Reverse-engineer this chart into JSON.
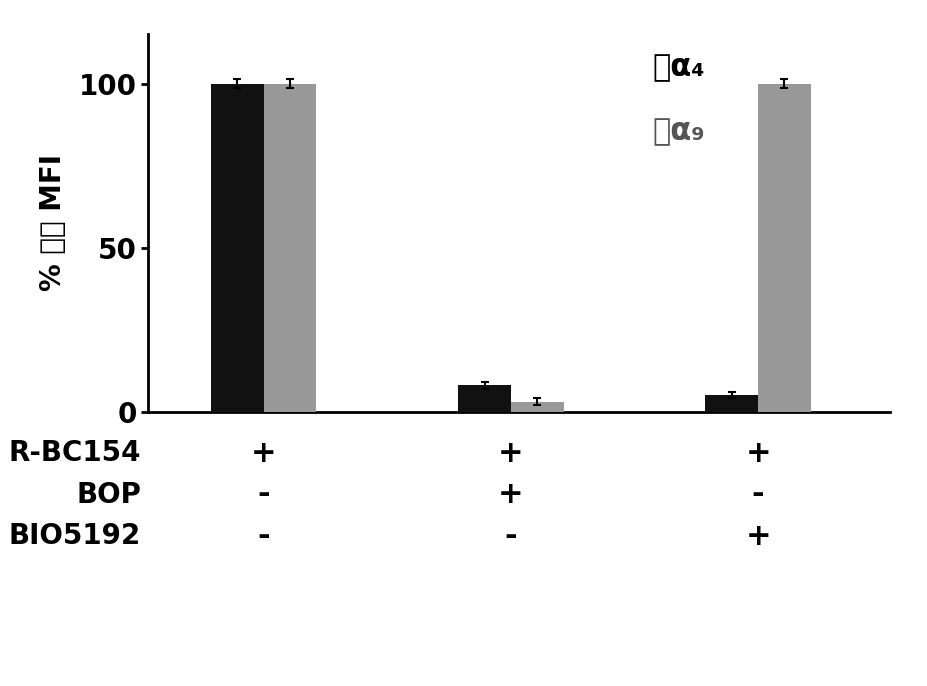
{
  "dark_values": [
    100,
    8,
    5
  ],
  "light_values": [
    100,
    3,
    100
  ],
  "dark_errors": [
    1.5,
    1.0,
    1.0
  ],
  "light_errors": [
    1.5,
    1.0,
    1.5
  ],
  "dark_color": "#111111",
  "light_color": "#999999",
  "ylabel_parts": [
    "% ",
    "最大",
    " MFI"
  ],
  "ylim": [
    0,
    115
  ],
  "yticks": [
    0,
    50,
    100
  ],
  "legend_label1": "人α₄",
  "legend_label2": "人α₉",
  "row1_label": "R-BC154",
  "row2_label": "BOP",
  "row3_label": "BIO5192",
  "row1_signs": [
    "+",
    "+",
    "+"
  ],
  "row2_signs": [
    "-",
    "+",
    "-"
  ],
  "row3_signs": [
    "-",
    "-",
    "+"
  ],
  "bar_width": 0.32,
  "group_positions": [
    1.0,
    2.5,
    4.0
  ],
  "background_color": "#ffffff",
  "label_fontsize": 20,
  "tick_fontsize": 20,
  "legend_fontsize": 22,
  "sign_fontsize": 22,
  "rowlabel_fontsize": 20
}
